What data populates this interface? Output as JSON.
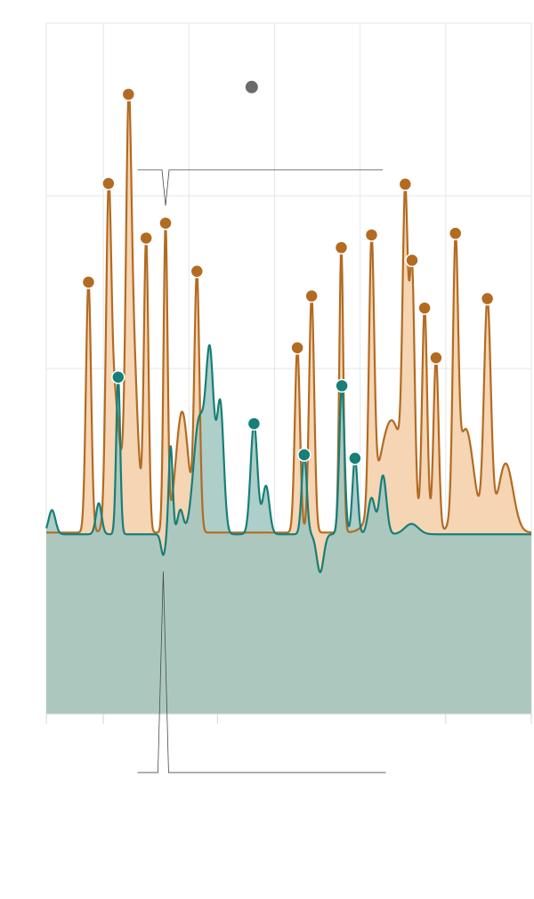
{
  "chart_data": {
    "type": "area",
    "title": "",
    "xlabel": "",
    "ylabel": "",
    "xlim": [
      0,
      85
    ],
    "ylim": [
      0,
      4
    ],
    "grid": true,
    "legend": "none",
    "x_gridlines": [
      10,
      25,
      40,
      55,
      70,
      85
    ],
    "x_ticks": [
      0,
      10,
      30,
      70,
      85
    ],
    "y_gridlines": [
      2,
      3,
      4
    ],
    "series": [
      {
        "color": "#b36b22",
        "fill": "#f5d5b3",
        "baseline": 1.05,
        "peaks": [
          {
            "x": 7.4,
            "y": 2.5,
            "w": 0.45
          },
          {
            "x": 10.9,
            "y": 2.64,
            "w": 0.45
          },
          {
            "x": 11.9,
            "y": 1.85,
            "w": 0.9
          },
          {
            "x": 14.4,
            "y": 2.61,
            "w": 0.45
          },
          {
            "x": 15.0,
            "y": 2.25,
            "w": 0.9
          },
          {
            "x": 17.5,
            "y": 2.73,
            "w": 0.4
          },
          {
            "x": 20.9,
            "y": 2.82,
            "w": 0.35
          },
          {
            "x": 23.8,
            "y": 1.75,
            "w": 1.1
          },
          {
            "x": 26.4,
            "y": 2.52,
            "w": 0.45
          },
          {
            "x": 44.0,
            "y": 2.12,
            "w": 0.45
          },
          {
            "x": 46.5,
            "y": 2.42,
            "w": 0.45
          },
          {
            "x": 51.7,
            "y": 2.7,
            "w": 0.35
          },
          {
            "x": 57.0,
            "y": 2.59,
            "w": 0.45
          },
          {
            "x": 60.5,
            "y": 1.7,
            "w": 2.2
          },
          {
            "x": 62.9,
            "y": 2.67,
            "w": 0.45
          },
          {
            "x": 64.1,
            "y": 2.41,
            "w": 0.45
          },
          {
            "x": 66.3,
            "y": 2.33,
            "w": 0.45
          },
          {
            "x": 68.3,
            "y": 2.06,
            "w": 0.45
          },
          {
            "x": 71.7,
            "y": 2.52,
            "w": 0.45
          },
          {
            "x": 73.5,
            "y": 1.65,
            "w": 1.4
          },
          {
            "x": 77.3,
            "y": 2.37,
            "w": 0.6
          },
          {
            "x": 80.5,
            "y": 1.45,
            "w": 1.3
          }
        ],
        "markers_x": [
          7.4,
          10.9,
          14.4,
          17.5,
          20.9,
          26.4,
          44.0,
          46.5,
          51.7,
          57.0,
          62.9,
          64.1,
          66.3,
          68.3,
          71.7,
          77.3
        ]
      },
      {
        "color": "#177e78",
        "fill": "#9fc6bf",
        "baseline": 1.04,
        "peaks": [
          {
            "x": 1.0,
            "y": 1.18,
            "w": 0.6
          },
          {
            "x": 9.2,
            "y": 1.22,
            "w": 0.5
          },
          {
            "x": 12.6,
            "y": 1.95,
            "w": 0.35
          },
          {
            "x": 21.8,
            "y": 1.55,
            "w": 0.35
          },
          {
            "x": 23.5,
            "y": 1.18,
            "w": 0.5
          },
          {
            "x": 26.8,
            "y": 1.7,
            "w": 1.0
          },
          {
            "x": 28.7,
            "y": 2.01,
            "w": 0.7
          },
          {
            "x": 30.5,
            "y": 1.78,
            "w": 0.6
          },
          {
            "x": 36.4,
            "y": 1.68,
            "w": 0.6
          },
          {
            "x": 38.5,
            "y": 1.32,
            "w": 0.6
          },
          {
            "x": 45.2,
            "y": 1.5,
            "w": 0.45
          },
          {
            "x": 51.8,
            "y": 1.9,
            "w": 0.45
          },
          {
            "x": 54.1,
            "y": 1.48,
            "w": 0.45
          },
          {
            "x": 57.0,
            "y": 1.25,
            "w": 0.6
          },
          {
            "x": 59.0,
            "y": 1.38,
            "w": 0.6
          },
          {
            "x": 64.0,
            "y": 1.1,
            "w": 1.2
          }
        ],
        "dips": [
          {
            "x": 20.5,
            "y": 0.92,
            "w": 0.4
          },
          {
            "x": 48.0,
            "y": 0.82,
            "w": 0.6
          }
        ],
        "markers_x": [
          12.6,
          36.4,
          45.2,
          51.8,
          54.1
        ]
      }
    ],
    "annotations": [
      {
        "type": "dot",
        "x": 36.0,
        "y": 3.63,
        "color": "#6b6b6b"
      },
      {
        "type": "bracket-down",
        "x_start": 16.0,
        "x_end": 59.0,
        "notch_x": 20.9,
        "y": 3.15
      },
      {
        "type": "bracket-up",
        "x_start": 16.0,
        "x_end": 59.5,
        "notch_x": 20.5,
        "y": -0.34
      }
    ]
  }
}
